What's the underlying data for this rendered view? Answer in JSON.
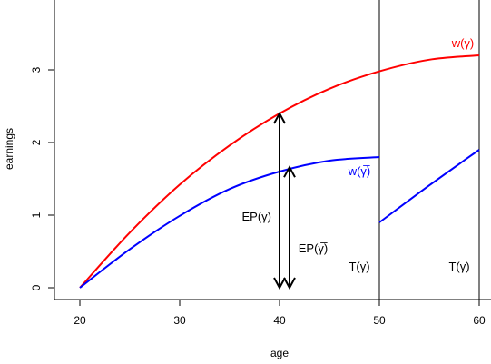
{
  "chart_data": {
    "type": "line",
    "xlabel": "age",
    "ylabel": "earnings",
    "xlim": [
      20,
      60
    ],
    "ylim": [
      0,
      3.8
    ],
    "x_ticks": [
      20,
      30,
      40,
      50,
      60
    ],
    "y_ticks": [
      0,
      1,
      2,
      3
    ],
    "grid": false,
    "series": [
      {
        "name": "w(γ)",
        "color": "#ff0000",
        "x": [
          20,
          25,
          30,
          35,
          40,
          45,
          50,
          55,
          60
        ],
        "y": [
          0,
          0.76,
          1.42,
          1.96,
          2.4,
          2.74,
          2.98,
          3.14,
          3.2
        ]
      },
      {
        "name": "w(γ̅)",
        "color": "#0000ff",
        "x": [
          20,
          25,
          30,
          35,
          40,
          45,
          50
        ],
        "y": [
          0,
          0.53,
          0.99,
          1.36,
          1.6,
          1.75,
          1.8
        ]
      },
      {
        "name": "",
        "color": "#0000ff",
        "x": [
          50,
          55,
          60
        ],
        "y": [
          0.9,
          1.41,
          1.9
        ]
      }
    ],
    "vertical_lines": [
      50,
      60
    ],
    "arrows": [
      {
        "x": 40,
        "y_from": 0,
        "y_to": 2.4
      },
      {
        "x": 41,
        "y_from": 0,
        "y_to": 1.66
      }
    ],
    "annotations": [
      {
        "text": "w(γ)",
        "color": "#ff0000"
      },
      {
        "text": "w(γ̅)",
        "color": "#0000ff"
      },
      {
        "text": "EP(γ)",
        "color": "#000000"
      },
      {
        "text": "EP(γ̅)",
        "color": "#000000"
      },
      {
        "text": "T(γ̅)",
        "color": "#000000"
      },
      {
        "text": "T(γ)",
        "color": "#000000"
      }
    ]
  }
}
